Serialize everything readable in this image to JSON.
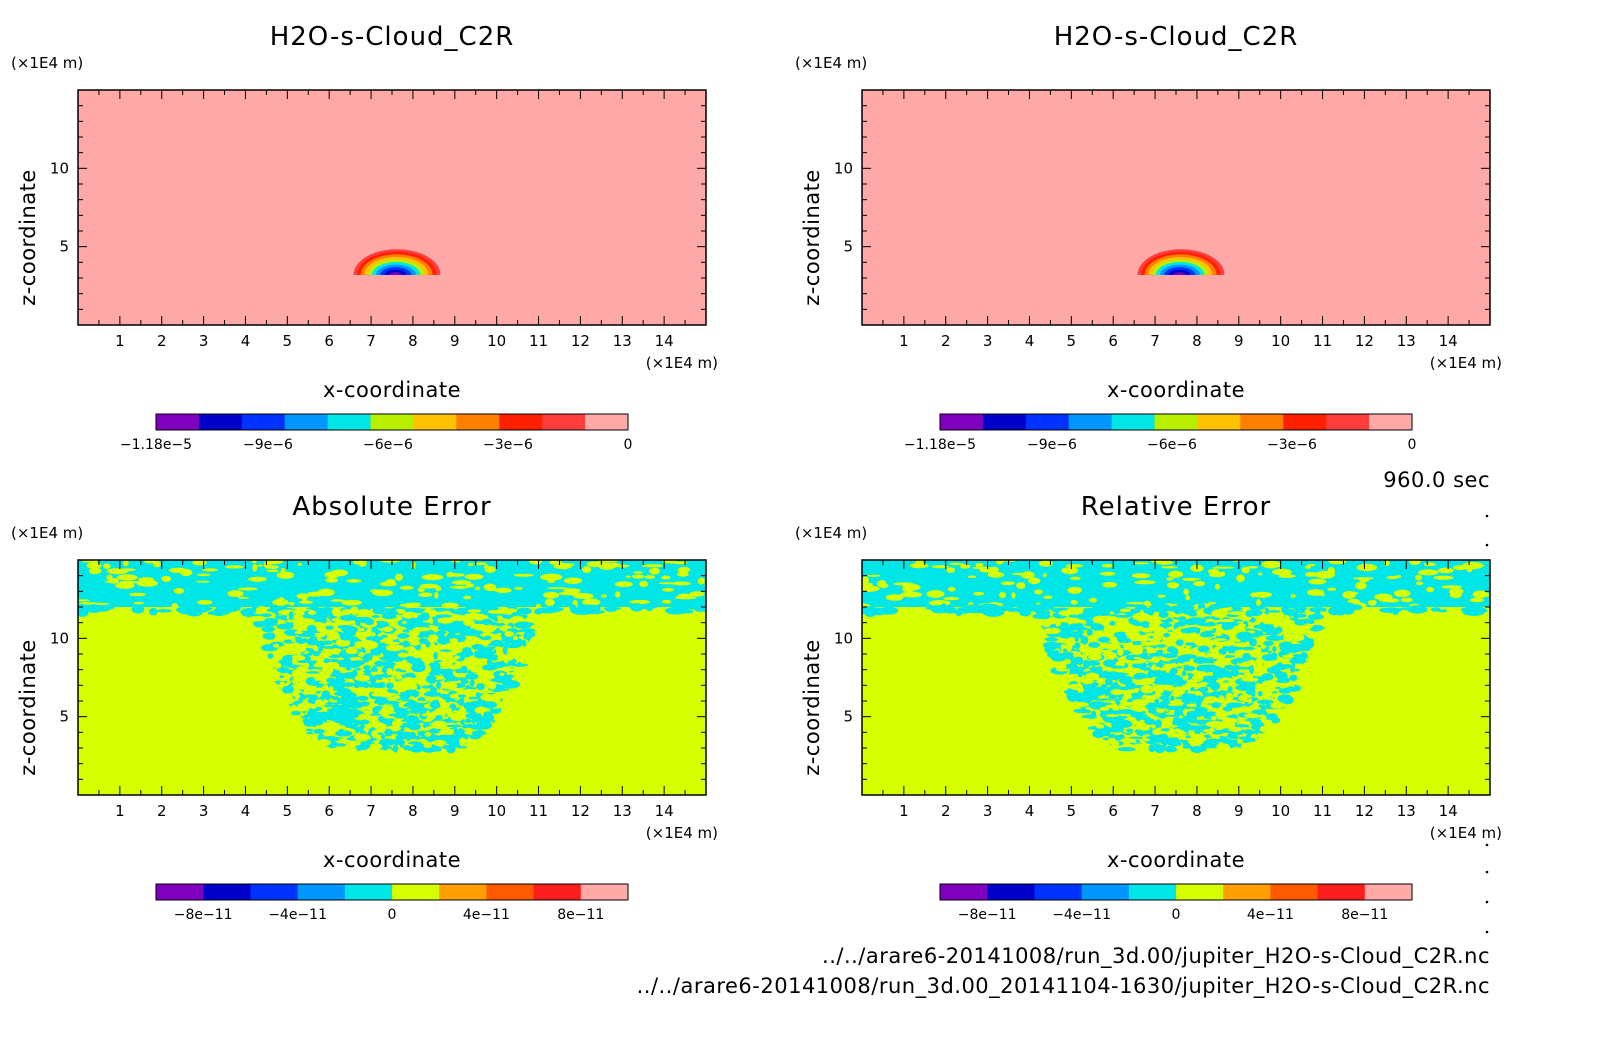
{
  "chart_data": [
    {
      "type": "heatmap",
      "title": "H2O-s-Cloud_C2R",
      "xlabel": "x-coordinate",
      "ylabel": "z-coordinate",
      "x_unit": "(×1E4 m)",
      "y_unit": "(×1E4 m)",
      "x_ticks": [
        1,
        2,
        3,
        4,
        5,
        6,
        7,
        8,
        9,
        10,
        11,
        12,
        13,
        14
      ],
      "y_ticks": [
        5,
        10
      ],
      "xlim": [
        0,
        15
      ],
      "ylim": [
        0,
        15
      ],
      "field": {
        "background_value": 0,
        "cloud": {
          "x_range": [
            6.5,
            8.75
          ],
          "z_range": [
            3.2,
            5.0
          ],
          "min_value": -1.18e-05,
          "min_at": [
            7.5,
            3.5
          ]
        }
      },
      "colorbar": {
        "colors": [
          "#7f00bf",
          "#0000c8",
          "#0032ff",
          "#0096ff",
          "#00e6e6",
          "#b9f000",
          "#ffc000",
          "#ff7f00",
          "#ff2000",
          "#ff3c3c",
          "#ffa8a8"
        ],
        "ticks": [
          {
            "label": "−1.18e−5",
            "value": -1.18e-05
          },
          {
            "label": "−9e−6",
            "value": -9e-06
          },
          {
            "label": "−6e−6",
            "value": -6e-06
          },
          {
            "label": "−3e−6",
            "value": -3e-06
          },
          {
            "label": "0",
            "value": 0
          }
        ],
        "min": -1.18e-05,
        "max": 0
      }
    },
    {
      "type": "heatmap",
      "title": "H2O-s-Cloud_C2R",
      "xlabel": "x-coordinate",
      "ylabel": "z-coordinate",
      "x_unit": "(×1E4 m)",
      "y_unit": "(×1E4 m)",
      "x_ticks": [
        1,
        2,
        3,
        4,
        5,
        6,
        7,
        8,
        9,
        10,
        11,
        12,
        13,
        14
      ],
      "y_ticks": [
        5,
        10
      ],
      "xlim": [
        0,
        15
      ],
      "ylim": [
        0,
        15
      ],
      "field": {
        "background_value": 0,
        "cloud": {
          "x_range": [
            6.5,
            8.75
          ],
          "z_range": [
            3.2,
            5.0
          ],
          "min_value": -1.18e-05,
          "min_at": [
            7.5,
            3.5
          ]
        }
      },
      "colorbar": {
        "colors": [
          "#7f00bf",
          "#0000c8",
          "#0032ff",
          "#0096ff",
          "#00e6e6",
          "#b9f000",
          "#ffc000",
          "#ff7f00",
          "#ff2000",
          "#ff3c3c",
          "#ffa8a8"
        ],
        "ticks": [
          {
            "label": "−1.18e−5",
            "value": -1.18e-05
          },
          {
            "label": "−9e−6",
            "value": -9e-06
          },
          {
            "label": "−6e−6",
            "value": -6e-06
          },
          {
            "label": "−3e−6",
            "value": -3e-06
          },
          {
            "label": "0",
            "value": 0
          }
        ],
        "min": -1.18e-05,
        "max": 0
      }
    },
    {
      "type": "heatmap",
      "title": "Absolute Error",
      "xlabel": "x-coordinate",
      "ylabel": "z-coordinate",
      "x_unit": "(×1E4 m)",
      "y_unit": "(×1E4 m)",
      "x_ticks": [
        1,
        2,
        3,
        4,
        5,
        6,
        7,
        8,
        9,
        10,
        11,
        12,
        13,
        14
      ],
      "y_ticks": [
        5,
        10
      ],
      "xlim": [
        0,
        15
      ],
      "ylim": [
        0,
        15
      ],
      "field": {
        "background_value": 0,
        "upper_band_z": [
          12.0,
          15.0
        ],
        "upper_band_value": -1e-11,
        "noise_region_x": [
          4.2,
          11.0
        ],
        "noise_region_z": [
          2.9,
          11.8
        ]
      },
      "colorbar": {
        "colors": [
          "#7f00bf",
          "#0000c8",
          "#0032ff",
          "#0096ff",
          "#00e6e6",
          "#d6ff00",
          "#ffa000",
          "#ff5a00",
          "#ff1e1e",
          "#ffa8a8"
        ],
        "ticks": [
          {
            "label": "−8e−11",
            "value": -8e-11
          },
          {
            "label": "−4e−11",
            "value": -4e-11
          },
          {
            "label": "0",
            "value": 0
          },
          {
            "label": "4e−11",
            "value": 4e-11
          },
          {
            "label": "8e−11",
            "value": 8e-11
          }
        ],
        "min": -1e-10,
        "max": 1e-10
      }
    },
    {
      "type": "heatmap",
      "title": "Relative Error",
      "xlabel": "x-coordinate",
      "ylabel": "z-coordinate",
      "x_unit": "(×1E4 m)",
      "y_unit": "(×1E4 m)",
      "x_ticks": [
        1,
        2,
        3,
        4,
        5,
        6,
        7,
        8,
        9,
        10,
        11,
        12,
        13,
        14
      ],
      "y_ticks": [
        5,
        10
      ],
      "xlim": [
        0,
        15
      ],
      "ylim": [
        0,
        15
      ],
      "field": {
        "background_value": 0,
        "upper_band_z": [
          12.0,
          15.0
        ],
        "upper_band_value": -1e-11,
        "noise_region_x": [
          4.2,
          11.0
        ],
        "noise_region_z": [
          2.9,
          11.8
        ]
      },
      "colorbar": {
        "colors": [
          "#7f00bf",
          "#0000c8",
          "#0032ff",
          "#0096ff",
          "#00e6e6",
          "#d6ff00",
          "#ffa000",
          "#ff5a00",
          "#ff1e1e",
          "#ffa8a8"
        ],
        "ticks": [
          {
            "label": "−8e−11",
            "value": -8e-11
          },
          {
            "label": "−4e−11",
            "value": -4e-11
          },
          {
            "label": "0",
            "value": 0
          },
          {
            "label": "4e−11",
            "value": 4e-11
          },
          {
            "label": "8e−11",
            "value": 8e-11
          }
        ],
        "min": -1e-10,
        "max": 1e-10
      }
    }
  ],
  "time_label": "960.0 sec",
  "file_paths": [
    "../../arare6-20141008/run_3d.00/jupiter_H2O-s-Cloud_C2R.nc",
    "../../arare6-20141008/run_3d.00_20141104-1630/jupiter_H2O-s-Cloud_C2R.nc"
  ]
}
